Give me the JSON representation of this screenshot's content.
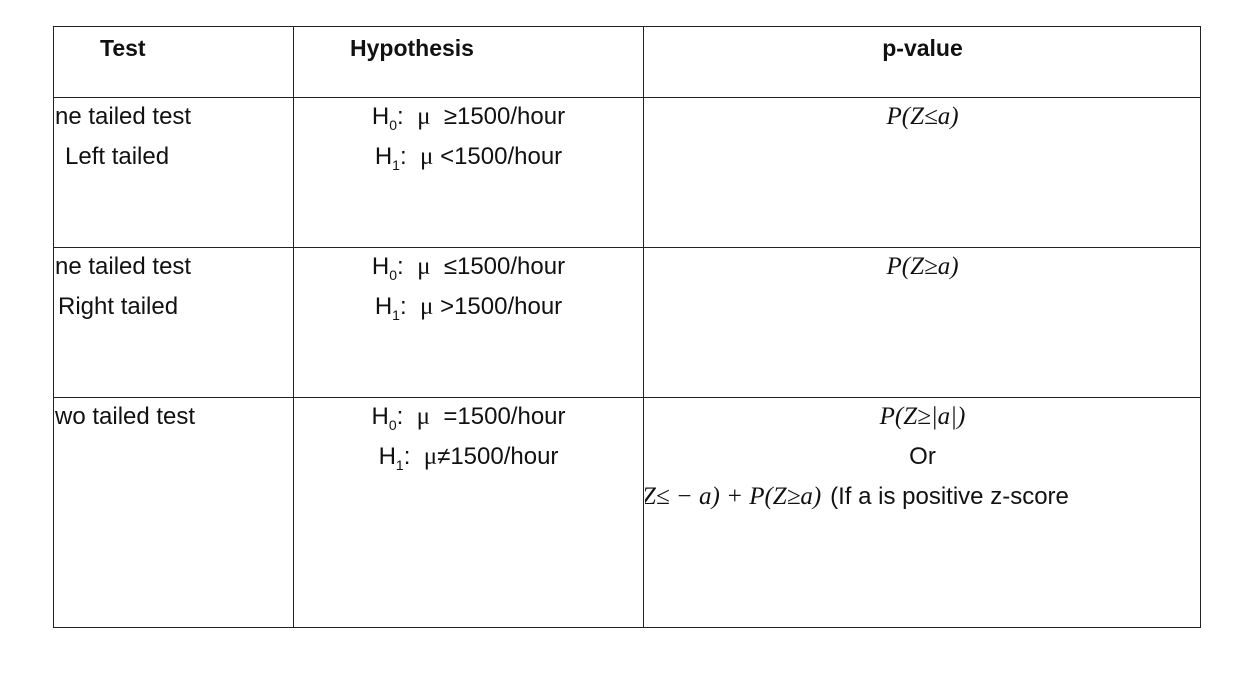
{
  "headers": {
    "test": "Test",
    "hypothesis": "Hypothesis",
    "pvalue": "p-value"
  },
  "rows": [
    {
      "test_line1": "ne tailed test",
      "test_line2": "Left tailed",
      "h0": "≥1500/hour",
      "h1": "<1500/hour",
      "pvalue_line1": "P(Z≤a)"
    },
    {
      "test_line1": "ne tailed test",
      "test_line2": "Right tailed",
      "h0": "≤1500/hour",
      "h1": ">1500/hour",
      "pvalue_line1": "P(Z≥a)"
    },
    {
      "test_line1": "wo tailed test",
      "h0": "=1500/hour",
      "h1": "≠1500/hour",
      "pvalue_line1": "P(Z≥|a|)",
      "pvalue_line2": "Or",
      "pvalue_line3_math": "Z≤ − a) +   P(Z≥a)",
      "pvalue_line3_text": "(If a is positive z-score"
    }
  ],
  "symbols": {
    "H": "H",
    "sub0": "0",
    "sub1": "1",
    "colon": ":",
    "mu": "μ"
  }
}
